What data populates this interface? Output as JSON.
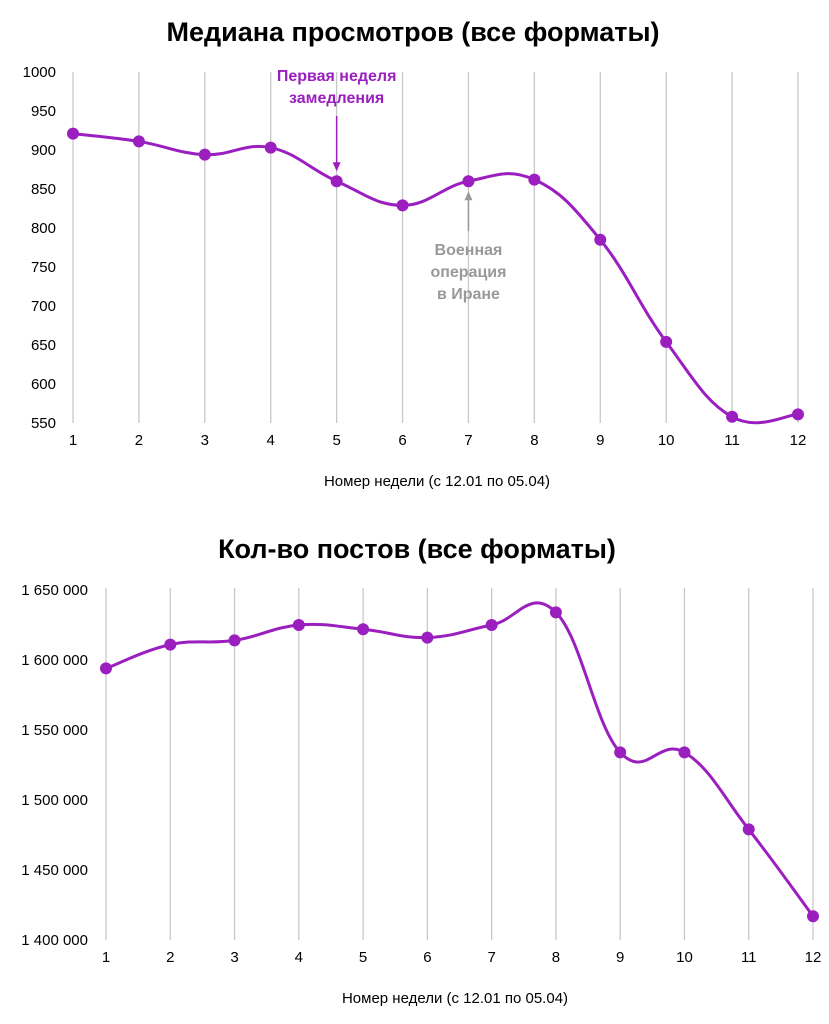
{
  "chart_data": [
    {
      "type": "line",
      "title": "Медиана просмотров (все форматы)",
      "xlabel": "Номер недели (с 12.01 по 05.04)",
      "ylabel": "",
      "x": [
        "1",
        "2",
        "3",
        "4",
        "5",
        "6",
        "7",
        "8",
        "9",
        "10",
        "11",
        "12"
      ],
      "y_ticks": [
        "1000",
        "950",
        "900",
        "850",
        "800",
        "750",
        "700",
        "650",
        "600",
        "550"
      ],
      "ylim": [
        550,
        1000
      ],
      "grid": "vertical",
      "series": [
        {
          "values": [
            921,
            911,
            894,
            903,
            860,
            829,
            860,
            862,
            785,
            654,
            558,
            561
          ]
        }
      ],
      "annotations": [
        {
          "lines": [
            "Первая неделя",
            "замедления"
          ],
          "x": "5",
          "color": "#9b1fbf"
        },
        {
          "lines": [
            "Военная",
            "операция",
            "в Иране"
          ],
          "x": "7",
          "color": "#999999"
        }
      ]
    },
    {
      "type": "line",
      "title": "Кол-во постов (все форматы)",
      "xlabel": "Номер недели (с 12.01 по 05.04)",
      "ylabel": "",
      "x": [
        "1",
        "2",
        "3",
        "4",
        "5",
        "6",
        "7",
        "8",
        "9",
        "10",
        "11",
        "12"
      ],
      "y_ticks": [
        "1 650 000",
        "1 600 000",
        "1 550 000",
        "1 500 000",
        "1 450 000",
        "1 400 000"
      ],
      "ylim": [
        1400000,
        1650000
      ],
      "grid": "vertical",
      "series": [
        {
          "values": [
            1594000,
            1611000,
            1614000,
            1625000,
            1622000,
            1616000,
            1625000,
            1634000,
            1534000,
            1534000,
            1479000,
            1417000
          ]
        }
      ]
    }
  ],
  "colors": {
    "line": "#9b1fbf",
    "grid": "#c8c8c8",
    "annotation_gray": "#999999"
  }
}
